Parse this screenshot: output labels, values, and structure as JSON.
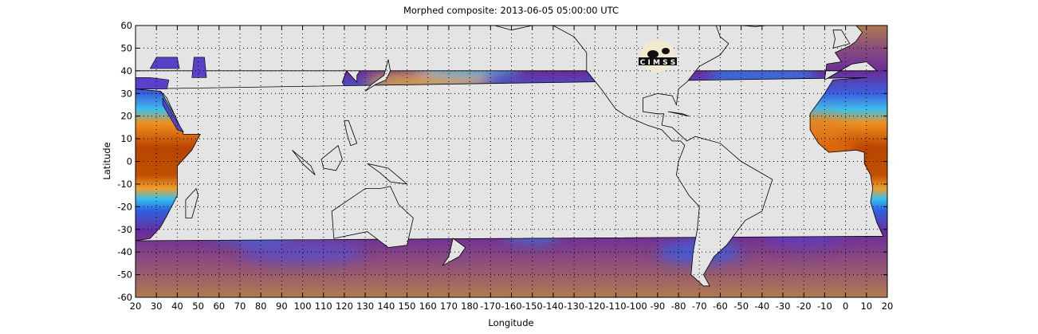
{
  "title": "Morphed composite: 2013-06-05 05:00:00 UTC",
  "x_axis": {
    "label": "Longitude",
    "ticks": [
      "20",
      "30",
      "40",
      "50",
      "60",
      "70",
      "80",
      "90",
      "100",
      "110",
      "120",
      "130",
      "140",
      "150",
      "160",
      "170",
      "180",
      "-170",
      "-160",
      "-150",
      "-140",
      "-130",
      "-120",
      "-110",
      "-100",
      "-90",
      "-80",
      "-70",
      "-60",
      "-50",
      "-40",
      "-30",
      "-20",
      "-10",
      "0",
      "10",
      "20"
    ]
  },
  "y_axis": {
    "label": "Latitude",
    "ticks": [
      "60",
      "50",
      "40",
      "30",
      "20",
      "10",
      "0",
      "-10",
      "-20",
      "-30",
      "-40",
      "-50",
      "-60"
    ]
  },
  "map": {
    "lon_range": [
      20,
      380
    ],
    "lat_range": [
      -60,
      60
    ],
    "grid": "dotted",
    "land_color": "#e4e4e4",
    "colormap": [
      "#b07a50",
      "#8a4a80",
      "#6a2c9a",
      "#3a60e0",
      "#30b8f0",
      "#60e890",
      "#f0e040",
      "#f09020",
      "#c04000",
      "#8a2000"
    ]
  },
  "logo": {
    "text": "CIMSS"
  }
}
